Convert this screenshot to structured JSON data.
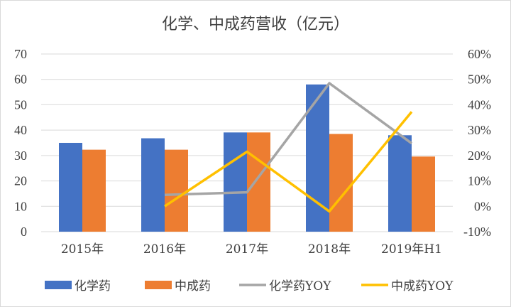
{
  "chart_data": {
    "type": "bar+line",
    "title": "化学、中成药营收（亿元）",
    "categories": [
      "2015年",
      "2016年",
      "2017年",
      "2018年",
      "2019年H1"
    ],
    "bar_series": [
      {
        "name": "化学药",
        "color": "#4472C4",
        "values": [
          35,
          36.8,
          39.1,
          58,
          38
        ]
      },
      {
        "name": "中成药",
        "color": "#ED7D31",
        "values": [
          32.3,
          32.3,
          39.1,
          38.5,
          29.6
        ]
      }
    ],
    "line_series": [
      {
        "name": "化学药YOY",
        "color": "#A5A5A5",
        "values": [
          null,
          4.5,
          5.5,
          48.5,
          24.8
        ]
      },
      {
        "name": "中成药YOY",
        "color": "#FFC000",
        "values": [
          null,
          0,
          21.5,
          -2,
          37.2
        ]
      }
    ],
    "y_left": {
      "min": 0,
      "max": 70,
      "ticks": [
        "0",
        "10",
        "20",
        "30",
        "40",
        "50",
        "60",
        "70"
      ]
    },
    "y_right": {
      "min": -10,
      "max": 60,
      "ticks": [
        "-10%",
        "0%",
        "10%",
        "20%",
        "30%",
        "40%",
        "50%",
        "60%"
      ]
    },
    "grid": true,
    "legend_position": "bottom"
  }
}
